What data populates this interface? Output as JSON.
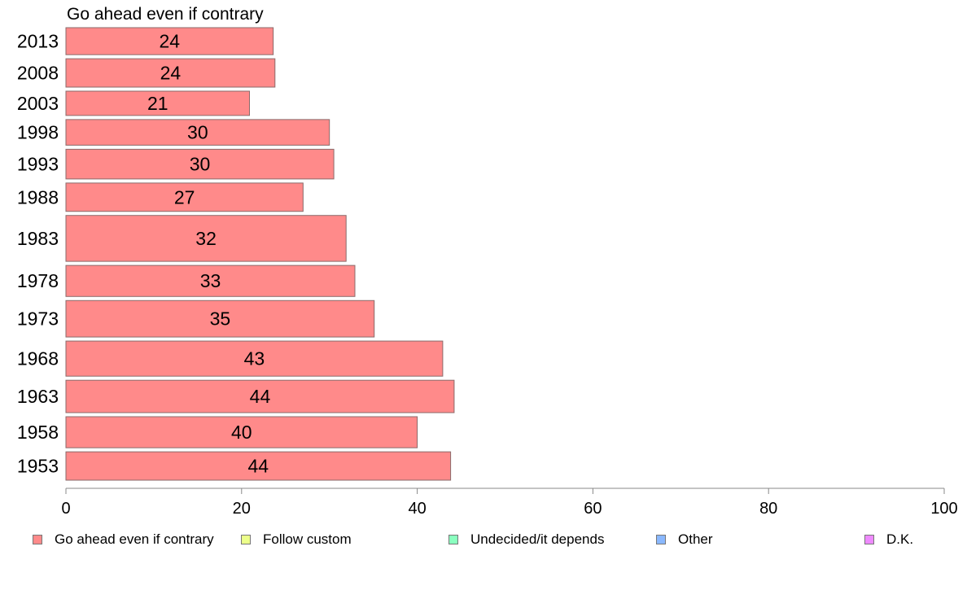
{
  "chart_data": {
    "type": "bar",
    "orientation": "horizontal",
    "series_label": "Go ahead even if contrary",
    "categories": [
      "2013",
      "2008",
      "2003",
      "1998",
      "1993",
      "1988",
      "1983",
      "1978",
      "1973",
      "1968",
      "1963",
      "1958",
      "1953"
    ],
    "series": [
      {
        "name": "Go ahead even if contrary",
        "values": [
          24,
          24,
          21,
          30,
          30,
          27,
          32,
          33,
          35,
          43,
          44,
          40,
          44
        ],
        "plotted_values": [
          23.6,
          23.8,
          20.9,
          30.0,
          30.5,
          27.0,
          31.9,
          32.9,
          35.1,
          42.9,
          44.2,
          40.0,
          43.8
        ],
        "color": "#ff8a8a"
      }
    ],
    "category_weights": [
      1.0,
      1.05,
      0.9,
      0.95,
      1.1,
      1.05,
      1.7,
      1.15,
      1.35,
      1.3,
      1.2,
      1.15,
      1.05
    ],
    "xlim": [
      0,
      100
    ],
    "xticks": [
      "0",
      "20",
      "40",
      "60",
      "80",
      "100"
    ],
    "grid": false,
    "legend_placement": "bottom",
    "legend": [
      {
        "label": "Go ahead even if contrary",
        "color": "#ff8a8a"
      },
      {
        "label": "Follow custom",
        "color": "#ecff8a"
      },
      {
        "label": "Undecided/it depends",
        "color": "#8affbf"
      },
      {
        "label": "Other",
        "color": "#8ab8ff"
      },
      {
        "label": "D.K.",
        "color": "#ee8aff"
      }
    ]
  }
}
